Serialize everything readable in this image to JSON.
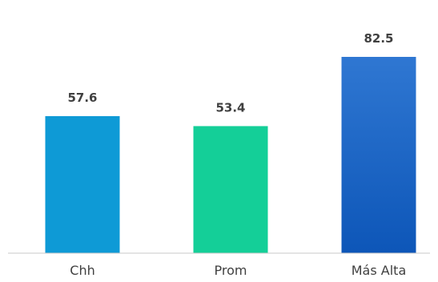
{
  "chart_data": {
    "type": "bar",
    "categories": [
      "Chh",
      "Prom",
      "Más Alta"
    ],
    "values": [
      57.6,
      53.4,
      82.5
    ],
    "value_labels": [
      "57.6",
      "53.4",
      "82.5"
    ],
    "colors": [
      "#0e9ad6",
      "#14cf98",
      "#1f63c8"
    ],
    "gradient_last_top": "#2f77d2",
    "gradient_last_bottom": "#0d56b8",
    "axis_color": "#c8c8c8",
    "text_color": "#404040",
    "ylim": [
      0,
      100
    ],
    "grid": false,
    "legend": "none"
  }
}
